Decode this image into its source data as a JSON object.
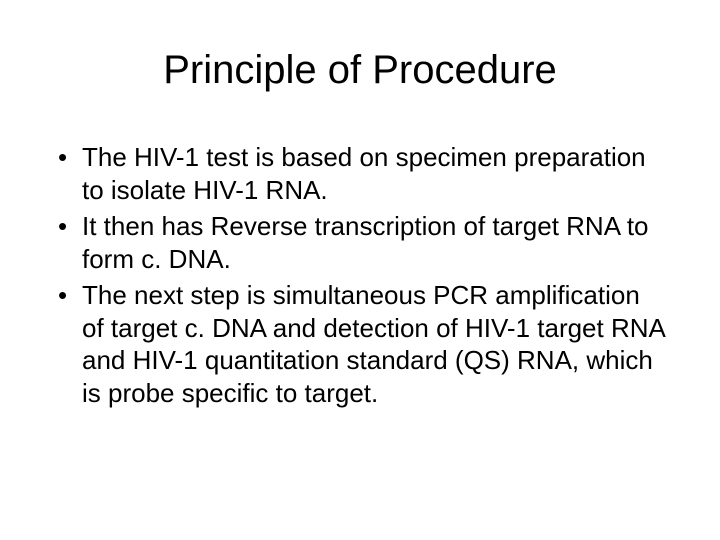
{
  "slide": {
    "title": "Principle of Procedure",
    "title_fontsize": 40,
    "body_fontsize": 26,
    "background_color": "#ffffff",
    "text_color": "#000000",
    "bullets": [
      "The HIV-1 test is based on specimen preparation to isolate HIV-1 RNA.",
      "It then has Reverse transcription of target RNA to form c. DNA.",
      "The next step is simultaneous PCR amplification of target c. DNA and detection of HIV-1 target RNA and HIV-1 quantitation standard (QS) RNA, which is probe specific to target."
    ]
  }
}
